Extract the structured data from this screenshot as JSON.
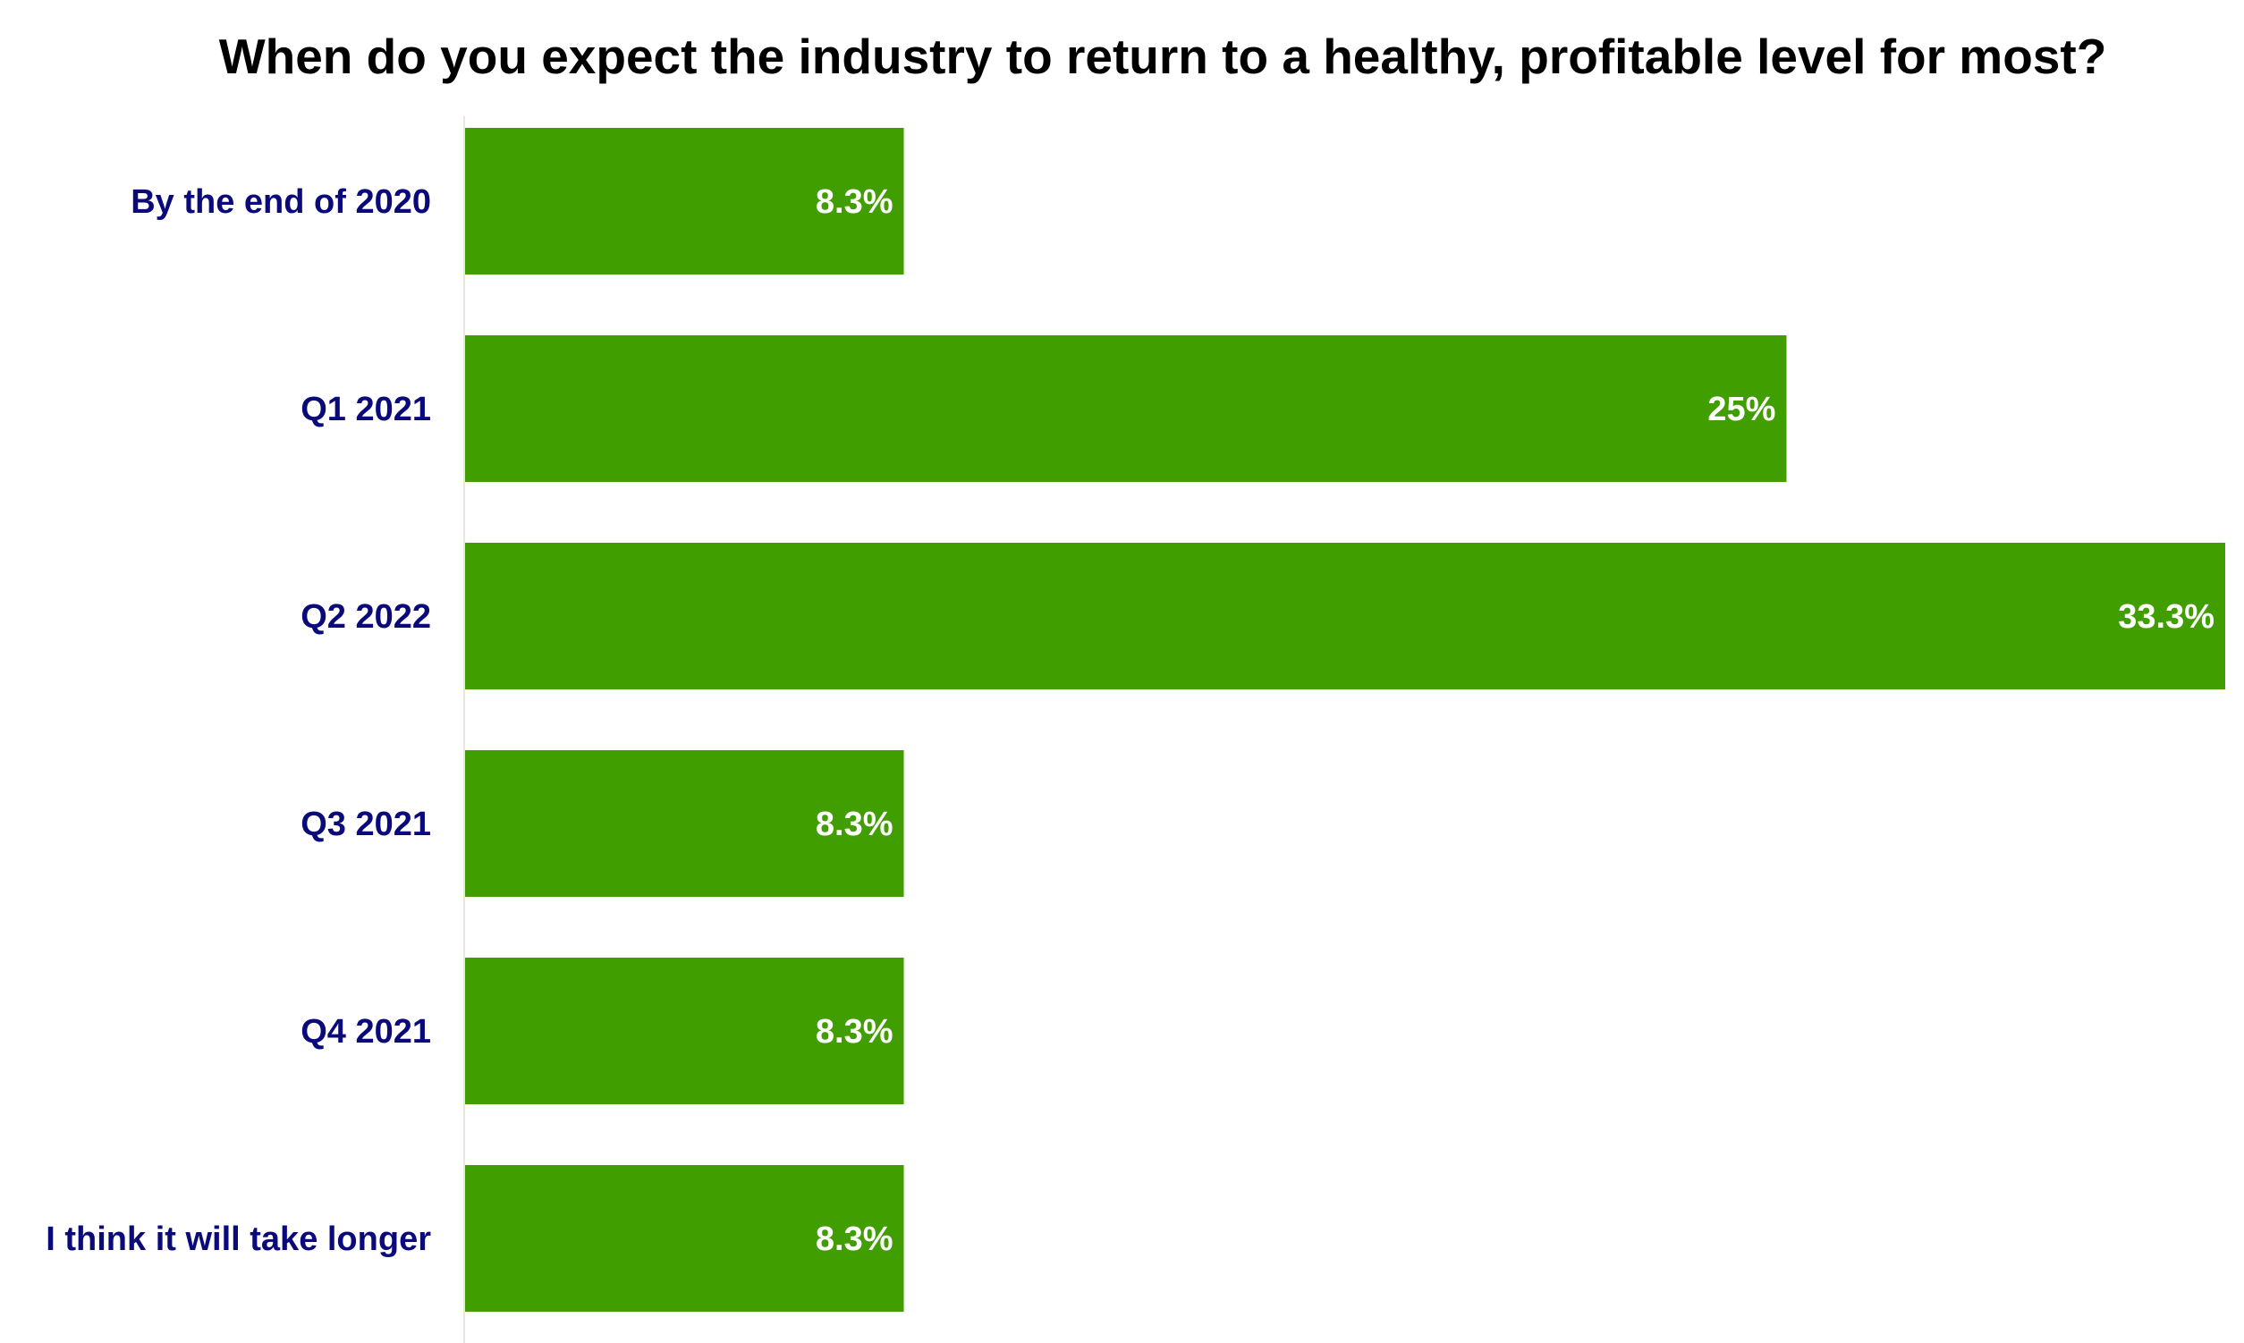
{
  "chart_data": {
    "type": "bar",
    "orientation": "horizontal",
    "title": "When do you expect the industry to return to a healthy, profitable level for most?",
    "categories": [
      "By the end of 2020",
      "Q1 2021",
      "Q2 2022",
      "Q3 2021",
      "Q4 2021",
      "I think it will take longer"
    ],
    "values": [
      8.3,
      25,
      33.3,
      8.3,
      8.3,
      8.3
    ],
    "data_labels": [
      "8.3%",
      "25%",
      "33.3%",
      "8.3%",
      "8.3%",
      "8.3%"
    ],
    "xlabel": "",
    "ylabel": "",
    "xlim": [
      0,
      33.3
    ],
    "grid": false,
    "legend": "none",
    "colors": {
      "bar": "#419E00",
      "category_label": "#0A0A7A",
      "data_label": "#FFFFFF",
      "title": "#000000",
      "axis_line": "#E6E6E6"
    }
  }
}
